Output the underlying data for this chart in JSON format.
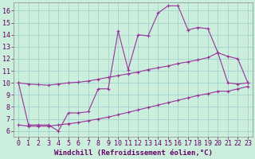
{
  "background_color": "#cceedd",
  "line_color": "#993399",
  "xlabel": "Windchill (Refroidissement éolien,°C)",
  "xlabel_fontsize": 6.5,
  "tick_fontsize": 6.0,
  "xlim": [
    -0.5,
    23.5
  ],
  "ylim": [
    5.5,
    16.7
  ],
  "yticks": [
    6,
    7,
    8,
    9,
    10,
    11,
    12,
    13,
    14,
    15,
    16
  ],
  "xticks": [
    0,
    1,
    2,
    3,
    4,
    5,
    6,
    7,
    8,
    9,
    10,
    11,
    12,
    13,
    14,
    15,
    16,
    17,
    18,
    19,
    20,
    21,
    22,
    23
  ],
  "grid_color": "#99cccc",
  "line1_x": [
    0,
    1,
    2,
    3,
    4,
    5,
    6,
    7,
    8,
    9,
    10,
    11,
    12,
    13,
    14,
    15,
    16,
    17,
    18,
    19,
    20,
    21,
    22,
    23
  ],
  "line1_y": [
    10.0,
    9.9,
    9.85,
    9.8,
    9.9,
    10.0,
    10.05,
    10.15,
    10.3,
    10.45,
    10.6,
    10.75,
    10.9,
    11.1,
    11.25,
    11.4,
    11.6,
    11.75,
    11.9,
    12.1,
    12.5,
    12.2,
    12.0,
    10.0
  ],
  "line2_x": [
    0,
    1,
    2,
    3,
    4,
    5,
    6,
    7,
    8,
    9,
    10,
    11,
    12,
    13,
    14,
    15,
    16,
    17,
    18,
    19,
    20,
    21,
    22,
    23
  ],
  "line2_y": [
    6.5,
    6.4,
    6.4,
    6.4,
    6.5,
    6.6,
    6.7,
    6.85,
    7.0,
    7.15,
    7.35,
    7.55,
    7.75,
    7.95,
    8.15,
    8.35,
    8.55,
    8.75,
    8.95,
    9.1,
    9.3,
    9.3,
    9.5,
    9.7
  ],
  "line3_x": [
    0,
    1,
    2,
    3,
    4,
    5,
    6,
    7,
    8,
    9,
    10,
    11,
    12,
    13,
    14,
    15,
    16,
    17,
    18,
    19,
    20,
    21,
    22,
    23
  ],
  "line3_y": [
    10.0,
    6.5,
    6.5,
    6.5,
    6.0,
    7.5,
    7.5,
    7.6,
    9.5,
    9.5,
    14.3,
    11.1,
    14.0,
    13.9,
    15.8,
    16.4,
    16.4,
    14.4,
    14.6,
    14.5,
    12.5,
    10.0,
    9.9,
    10.0
  ],
  "marker": "+",
  "marker_size": 3.5,
  "linewidth": 0.8
}
